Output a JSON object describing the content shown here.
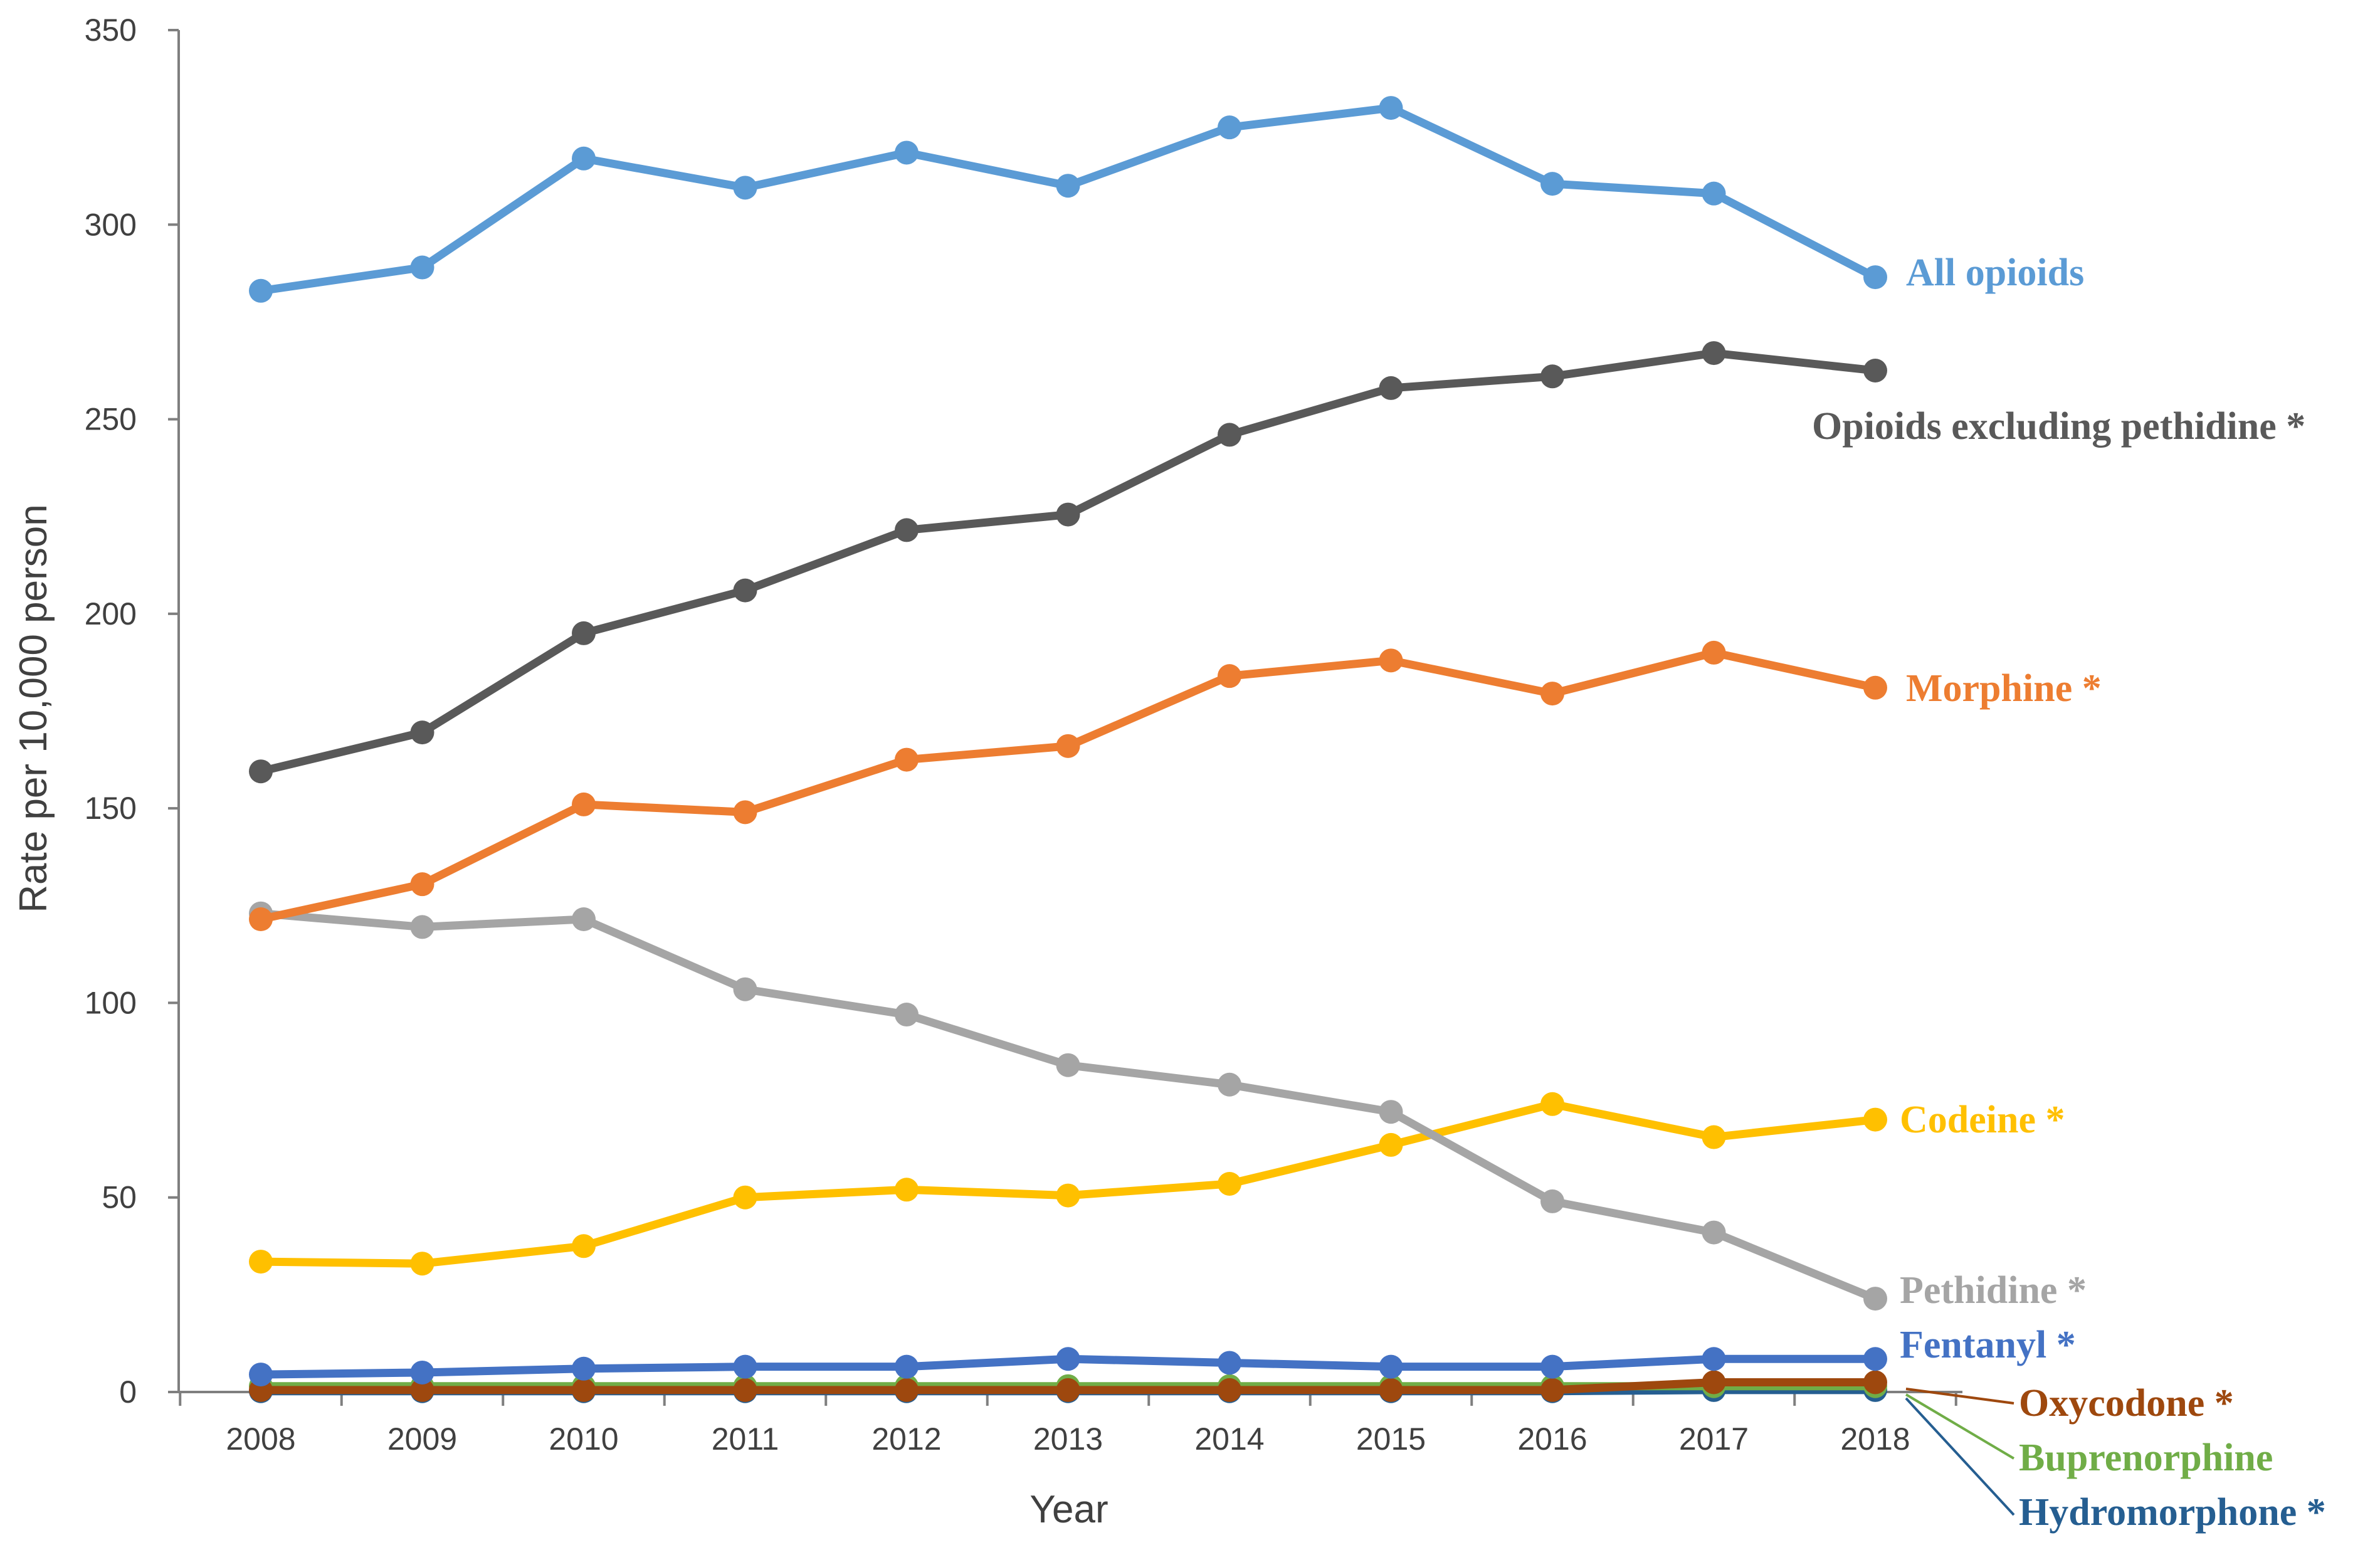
{
  "chart_data": {
    "type": "line",
    "xlabel": "Year",
    "ylabel": "Rate per 10,000 person",
    "ylim": [
      0,
      350
    ],
    "yticks": [
      0,
      50,
      100,
      150,
      200,
      250,
      300,
      350
    ],
    "grid": false,
    "legend": "inline labels at right end of each line",
    "categories": [
      "2008",
      "2009",
      "2010",
      "2011",
      "2012",
      "2013",
      "2014",
      "2015",
      "2016",
      "2017",
      "2018"
    ],
    "series": [
      {
        "name": "All opioids",
        "color": "#5b9bd5",
        "values": [
          283,
          289,
          317,
          309.5,
          318.5,
          310,
          325,
          330,
          310.5,
          308,
          286.5
        ]
      },
      {
        "name": "Opioids excluding pethidine *",
        "color": "#595959",
        "values": [
          159.5,
          169.5,
          195,
          206,
          221.5,
          225.5,
          246,
          258,
          261,
          267,
          262.5
        ]
      },
      {
        "name": "Morphine *",
        "color": "#ed7d31",
        "values": [
          121.5,
          130.5,
          151,
          149,
          162.5,
          166,
          184,
          188,
          179.5,
          190,
          181
        ]
      },
      {
        "name": "Pethidine *",
        "color": "#a5a5a5",
        "values": [
          123,
          119.5,
          121.5,
          103.5,
          97,
          84,
          79,
          72,
          49,
          41,
          24
        ]
      },
      {
        "name": "Codeine *",
        "color": "#ffc000",
        "values": [
          33.5,
          33,
          37.5,
          50,
          52,
          50.5,
          53.5,
          63.5,
          74,
          65.5,
          70
        ]
      },
      {
        "name": "Fentanyl *",
        "color": "#4472c4",
        "values": [
          4.5,
          5,
          6,
          6.5,
          6.5,
          8.5,
          7.5,
          6.5,
          6.5,
          8.5,
          8.5
        ]
      },
      {
        "name": "Oxycodone *",
        "color": "#9e480e",
        "values": [
          0.5,
          0.5,
          0.5,
          0.5,
          0.5,
          0.5,
          0.5,
          0.5,
          0.5,
          2.5,
          2.5
        ]
      },
      {
        "name": "Buprenorphine",
        "color": "#70ad47",
        "values": [
          1.5,
          1.5,
          1.5,
          1.5,
          1.5,
          1.5,
          1.5,
          1.5,
          1.5,
          1.5,
          1.5
        ]
      },
      {
        "name": "Hydromorphone *",
        "color": "#255e91",
        "values": [
          0.2,
          0.2,
          0.2,
          0.2,
          0.2,
          0.2,
          0.2,
          0.2,
          0.2,
          0.5,
          0.5
        ]
      }
    ]
  }
}
